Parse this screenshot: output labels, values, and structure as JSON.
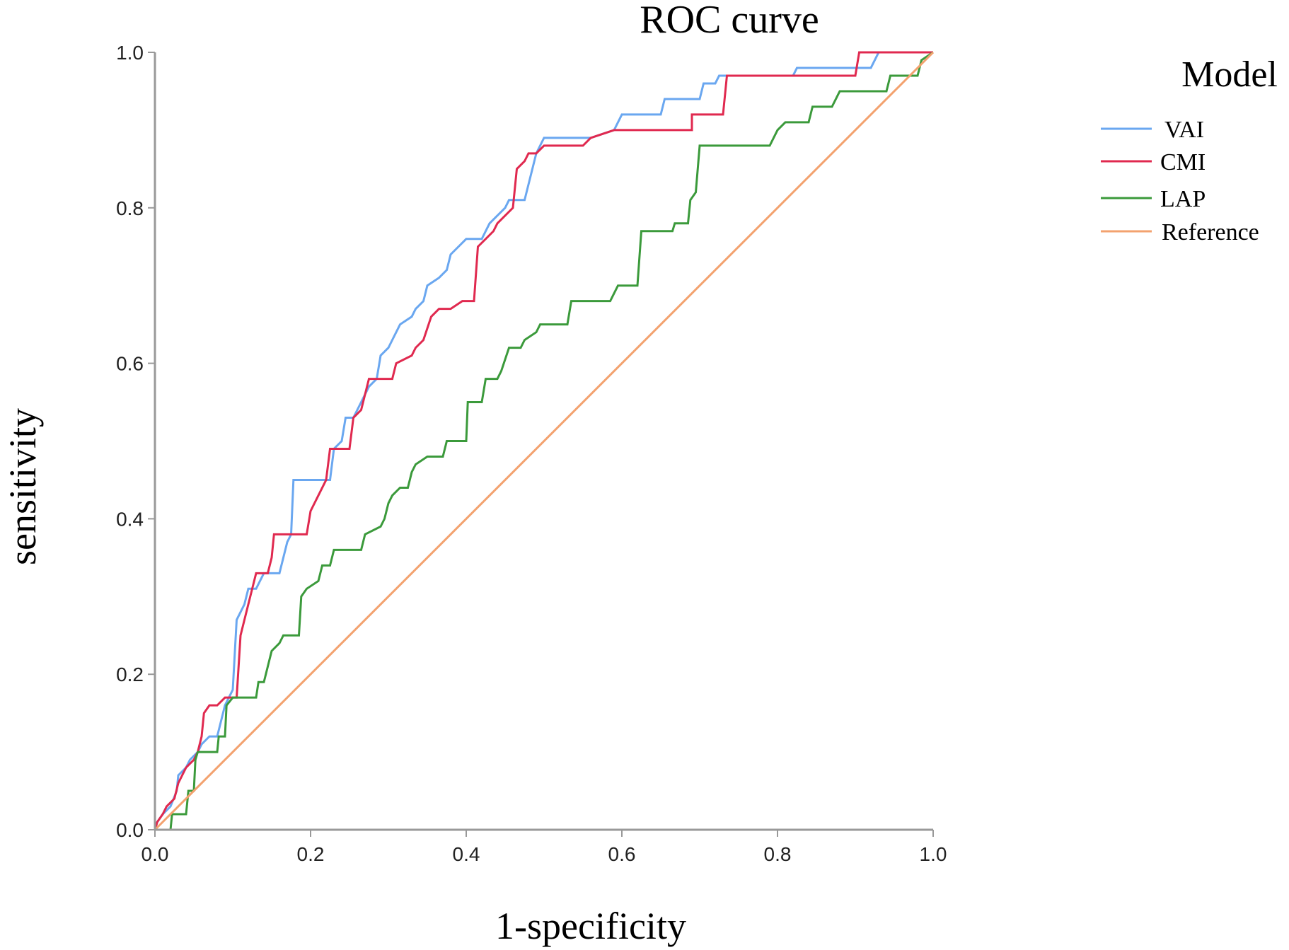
{
  "chart_data": {
    "type": "line",
    "title": "ROC curve",
    "xlabel": "1-specificity",
    "ylabel": "sensitivity",
    "xlim": [
      0,
      1
    ],
    "ylim": [
      0,
      1
    ],
    "x_ticks": [
      "0.0",
      "0.2",
      "0.4",
      "0.6",
      "0.8",
      "1.0"
    ],
    "y_ticks": [
      "0.0",
      "0.2",
      "0.4",
      "0.6",
      "0.8",
      "1.0"
    ],
    "x_tick_values": [
      0,
      0.2,
      0.4,
      0.6,
      0.8,
      1.0
    ],
    "y_tick_values": [
      0,
      0.2,
      0.4,
      0.6,
      0.8,
      1.0
    ],
    "legend": {
      "title": "Model",
      "position": "right"
    },
    "series": [
      {
        "name": "VAI",
        "color": "#6aa7f0",
        "points": [
          [
            0.0,
            0.0
          ],
          [
            0.003,
            0.01
          ],
          [
            0.01,
            0.02
          ],
          [
            0.02,
            0.03
          ],
          [
            0.028,
            0.05
          ],
          [
            0.03,
            0.07
          ],
          [
            0.04,
            0.08
          ],
          [
            0.045,
            0.09
          ],
          [
            0.055,
            0.1
          ],
          [
            0.06,
            0.11
          ],
          [
            0.07,
            0.12
          ],
          [
            0.08,
            0.12
          ],
          [
            0.09,
            0.16
          ],
          [
            0.1,
            0.18
          ],
          [
            0.105,
            0.27
          ],
          [
            0.11,
            0.28
          ],
          [
            0.115,
            0.29
          ],
          [
            0.12,
            0.31
          ],
          [
            0.13,
            0.31
          ],
          [
            0.14,
            0.33
          ],
          [
            0.16,
            0.33
          ],
          [
            0.165,
            0.35
          ],
          [
            0.17,
            0.37
          ],
          [
            0.175,
            0.38
          ],
          [
            0.178,
            0.45
          ],
          [
            0.19,
            0.45
          ],
          [
            0.2,
            0.45
          ],
          [
            0.225,
            0.45
          ],
          [
            0.23,
            0.49
          ],
          [
            0.24,
            0.5
          ],
          [
            0.245,
            0.53
          ],
          [
            0.255,
            0.53
          ],
          [
            0.26,
            0.54
          ],
          [
            0.265,
            0.55
          ],
          [
            0.27,
            0.56
          ],
          [
            0.275,
            0.57
          ],
          [
            0.285,
            0.58
          ],
          [
            0.29,
            0.61
          ],
          [
            0.3,
            0.62
          ],
          [
            0.305,
            0.63
          ],
          [
            0.315,
            0.65
          ],
          [
            0.33,
            0.66
          ],
          [
            0.335,
            0.67
          ],
          [
            0.345,
            0.68
          ],
          [
            0.35,
            0.7
          ],
          [
            0.365,
            0.71
          ],
          [
            0.375,
            0.72
          ],
          [
            0.38,
            0.74
          ],
          [
            0.39,
            0.75
          ],
          [
            0.4,
            0.76
          ],
          [
            0.42,
            0.76
          ],
          [
            0.43,
            0.78
          ],
          [
            0.44,
            0.79
          ],
          [
            0.45,
            0.8
          ],
          [
            0.455,
            0.81
          ],
          [
            0.475,
            0.81
          ],
          [
            0.49,
            0.87
          ],
          [
            0.495,
            0.88
          ],
          [
            0.5,
            0.89
          ],
          [
            0.51,
            0.89
          ],
          [
            0.54,
            0.89
          ],
          [
            0.56,
            0.89
          ],
          [
            0.59,
            0.9
          ],
          [
            0.6,
            0.92
          ],
          [
            0.65,
            0.92
          ],
          [
            0.655,
            0.94
          ],
          [
            0.7,
            0.94
          ],
          [
            0.705,
            0.96
          ],
          [
            0.72,
            0.96
          ],
          [
            0.725,
            0.97
          ],
          [
            0.74,
            0.97
          ],
          [
            0.75,
            0.97
          ],
          [
            0.82,
            0.97
          ],
          [
            0.825,
            0.98
          ],
          [
            0.92,
            0.98
          ],
          [
            0.93,
            1.0
          ],
          [
            1.0,
            1.0
          ]
        ]
      },
      {
        "name": "CMI",
        "color": "#e0294f",
        "points": [
          [
            0.0,
            0.0
          ],
          [
            0.003,
            0.01
          ],
          [
            0.01,
            0.02
          ],
          [
            0.015,
            0.03
          ],
          [
            0.025,
            0.04
          ],
          [
            0.03,
            0.06
          ],
          [
            0.035,
            0.07
          ],
          [
            0.04,
            0.08
          ],
          [
            0.05,
            0.09
          ],
          [
            0.055,
            0.1
          ],
          [
            0.06,
            0.12
          ],
          [
            0.063,
            0.15
          ],
          [
            0.07,
            0.16
          ],
          [
            0.08,
            0.16
          ],
          [
            0.09,
            0.17
          ],
          [
            0.105,
            0.17
          ],
          [
            0.11,
            0.25
          ],
          [
            0.12,
            0.29
          ],
          [
            0.125,
            0.31
          ],
          [
            0.13,
            0.33
          ],
          [
            0.145,
            0.33
          ],
          [
            0.15,
            0.35
          ],
          [
            0.153,
            0.38
          ],
          [
            0.165,
            0.38
          ],
          [
            0.195,
            0.38
          ],
          [
            0.2,
            0.41
          ],
          [
            0.21,
            0.43
          ],
          [
            0.215,
            0.44
          ],
          [
            0.22,
            0.45
          ],
          [
            0.225,
            0.49
          ],
          [
            0.25,
            0.49
          ],
          [
            0.255,
            0.53
          ],
          [
            0.265,
            0.54
          ],
          [
            0.275,
            0.58
          ],
          [
            0.285,
            0.58
          ],
          [
            0.305,
            0.58
          ],
          [
            0.31,
            0.6
          ],
          [
            0.33,
            0.61
          ],
          [
            0.335,
            0.62
          ],
          [
            0.345,
            0.63
          ],
          [
            0.355,
            0.66
          ],
          [
            0.365,
            0.67
          ],
          [
            0.38,
            0.67
          ],
          [
            0.395,
            0.68
          ],
          [
            0.41,
            0.68
          ],
          [
            0.415,
            0.75
          ],
          [
            0.425,
            0.76
          ],
          [
            0.435,
            0.77
          ],
          [
            0.44,
            0.78
          ],
          [
            0.45,
            0.79
          ],
          [
            0.46,
            0.8
          ],
          [
            0.465,
            0.85
          ],
          [
            0.475,
            0.86
          ],
          [
            0.48,
            0.87
          ],
          [
            0.49,
            0.87
          ],
          [
            0.5,
            0.88
          ],
          [
            0.55,
            0.88
          ],
          [
            0.56,
            0.89
          ],
          [
            0.59,
            0.9
          ],
          [
            0.6,
            0.9
          ],
          [
            0.69,
            0.9
          ],
          [
            0.69,
            0.92
          ],
          [
            0.73,
            0.92
          ],
          [
            0.735,
            0.97
          ],
          [
            0.75,
            0.97
          ],
          [
            0.82,
            0.97
          ],
          [
            0.9,
            0.97
          ],
          [
            0.905,
            1.0
          ],
          [
            1.0,
            1.0
          ]
        ]
      },
      {
        "name": "LAP",
        "color": "#3b9a3b",
        "points": [
          [
            0.0,
            0.0
          ],
          [
            0.02,
            0.0
          ],
          [
            0.022,
            0.02
          ],
          [
            0.04,
            0.02
          ],
          [
            0.043,
            0.05
          ],
          [
            0.05,
            0.05
          ],
          [
            0.052,
            0.09
          ],
          [
            0.055,
            0.1
          ],
          [
            0.08,
            0.1
          ],
          [
            0.082,
            0.12
          ],
          [
            0.09,
            0.12
          ],
          [
            0.092,
            0.16
          ],
          [
            0.1,
            0.17
          ],
          [
            0.13,
            0.17
          ],
          [
            0.133,
            0.19
          ],
          [
            0.14,
            0.19
          ],
          [
            0.145,
            0.21
          ],
          [
            0.15,
            0.23
          ],
          [
            0.16,
            0.24
          ],
          [
            0.165,
            0.25
          ],
          [
            0.185,
            0.25
          ],
          [
            0.188,
            0.3
          ],
          [
            0.195,
            0.31
          ],
          [
            0.21,
            0.32
          ],
          [
            0.215,
            0.34
          ],
          [
            0.225,
            0.34
          ],
          [
            0.23,
            0.36
          ],
          [
            0.265,
            0.36
          ],
          [
            0.27,
            0.38
          ],
          [
            0.29,
            0.39
          ],
          [
            0.295,
            0.4
          ],
          [
            0.3,
            0.42
          ],
          [
            0.305,
            0.43
          ],
          [
            0.315,
            0.44
          ],
          [
            0.325,
            0.44
          ],
          [
            0.33,
            0.46
          ],
          [
            0.335,
            0.47
          ],
          [
            0.35,
            0.48
          ],
          [
            0.37,
            0.48
          ],
          [
            0.375,
            0.5
          ],
          [
            0.4,
            0.5
          ],
          [
            0.402,
            0.55
          ],
          [
            0.42,
            0.55
          ],
          [
            0.425,
            0.58
          ],
          [
            0.44,
            0.58
          ],
          [
            0.445,
            0.59
          ],
          [
            0.455,
            0.62
          ],
          [
            0.47,
            0.62
          ],
          [
            0.475,
            0.63
          ],
          [
            0.49,
            0.64
          ],
          [
            0.495,
            0.65
          ],
          [
            0.53,
            0.65
          ],
          [
            0.535,
            0.68
          ],
          [
            0.585,
            0.68
          ],
          [
            0.59,
            0.69
          ],
          [
            0.595,
            0.7
          ],
          [
            0.62,
            0.7
          ],
          [
            0.625,
            0.77
          ],
          [
            0.665,
            0.77
          ],
          [
            0.668,
            0.78
          ],
          [
            0.685,
            0.78
          ],
          [
            0.688,
            0.81
          ],
          [
            0.695,
            0.82
          ],
          [
            0.7,
            0.88
          ],
          [
            0.79,
            0.88
          ],
          [
            0.8,
            0.9
          ],
          [
            0.81,
            0.91
          ],
          [
            0.84,
            0.91
          ],
          [
            0.845,
            0.93
          ],
          [
            0.87,
            0.93
          ],
          [
            0.875,
            0.94
          ],
          [
            0.88,
            0.95
          ],
          [
            0.94,
            0.95
          ],
          [
            0.945,
            0.97
          ],
          [
            0.98,
            0.97
          ],
          [
            0.985,
            0.99
          ],
          [
            1.0,
            1.0
          ]
        ]
      },
      {
        "name": "Reference",
        "color": "#f3a26f",
        "points": [
          [
            0.0,
            0.0
          ],
          [
            1.0,
            1.0
          ]
        ]
      }
    ]
  }
}
